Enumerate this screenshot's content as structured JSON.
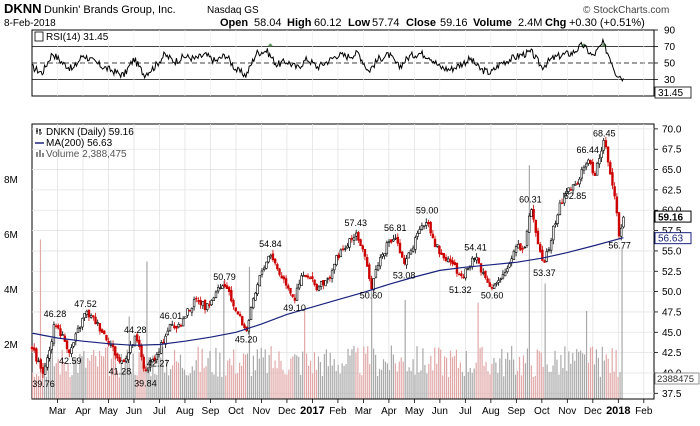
{
  "header": {
    "ticker": "DKNN",
    "company": "Dunkin' Brands Group, Inc.",
    "exchange": "Nasdaq GS",
    "date": "8-Feb-2018",
    "open_label": "Open",
    "open": "58.04",
    "high_label": "High",
    "high": "60.12",
    "low_label": "Low",
    "low": "57.74",
    "close_label": "Close",
    "close": "59.16",
    "volume_label": "Volume",
    "volume": "2.4M",
    "chg_label": "Chg",
    "chg": "+0.30 (+0.51%)",
    "attribution": "© StockCharts.com"
  },
  "rsi_panel": {
    "label": "RSI(14) 31.45",
    "current_tag": "31.45",
    "ticks": [
      30,
      50,
      70,
      90
    ],
    "ylim": [
      10,
      90
    ],
    "overbought": 70,
    "oversold": 30,
    "mid": 50,
    "line_color": "#000000",
    "highlight_color": "#3a7a3a"
  },
  "price_panel": {
    "legend": [
      {
        "label": "DNKN (Daily) 59.16"
      },
      {
        "label": "MA(200) 56.63"
      },
      {
        "label": "Volume 2,388,475"
      }
    ],
    "ticks": [
      37.5,
      40.0,
      42.5,
      45.0,
      47.5,
      50.0,
      52.5,
      55.0,
      57.5,
      60.0,
      62.5,
      65.0,
      67.5,
      70.0
    ],
    "tick_labels": [
      "37.5",
      "40.0",
      "42.5",
      "45.0",
      "47.5",
      "50.0",
      "52.5",
      "55.0",
      "57.5",
      "60.0",
      "62.5",
      "65.0",
      "67.5",
      "70.0"
    ],
    "ylim": [
      36.8,
      70.6
    ],
    "tags": {
      "close": "59.16",
      "ma": "56.63",
      "volume": "2388475"
    },
    "volume_ticks": [
      "2M",
      "4M",
      "6M",
      "8M"
    ],
    "volume_tick_values": [
      2,
      4,
      6,
      8
    ],
    "colors": {
      "up": "#000000",
      "down": "#cc0000",
      "ma": "#1a237e",
      "volume": "#bdbdbd",
      "volume_up": "#a9a9a9",
      "volume_down": "#e2a8a8"
    }
  },
  "chart_data": {
    "type": "candlestick",
    "title": "DKNN Dunkin' Brands Group, Inc. Nasdaq GS",
    "x_axis": {
      "tick_labels": [
        "Mar",
        "Apr",
        "May",
        "Jun",
        "Jul",
        "Aug",
        "Sep",
        "Oct",
        "Nov",
        "Dec",
        "2017",
        "Feb",
        "Mar",
        "Apr",
        "May",
        "Jun",
        "Jul",
        "Aug",
        "Sep",
        "Oct",
        "Nov",
        "Dec",
        "2018",
        "Feb"
      ],
      "tick_months": [
        1,
        2,
        3,
        4,
        5,
        6,
        7,
        8,
        9,
        10,
        11,
        12,
        13,
        14,
        15,
        16,
        17,
        18,
        19,
        20,
        21,
        22,
        23,
        24
      ],
      "range_months": [
        0.0,
        24.4
      ]
    },
    "price_series": [
      {
        "t": 0.0,
        "v": 43.0
      },
      {
        "t": 0.25,
        "v": 41.2
      },
      {
        "t": 0.45,
        "v": 39.76
      },
      {
        "t": 0.65,
        "v": 42.0
      },
      {
        "t": 0.9,
        "v": 46.28
      },
      {
        "t": 1.2,
        "v": 44.5
      },
      {
        "t": 1.5,
        "v": 42.59
      },
      {
        "t": 1.8,
        "v": 45.2
      },
      {
        "t": 2.1,
        "v": 47.52
      },
      {
        "t": 2.45,
        "v": 46.5
      },
      {
        "t": 2.8,
        "v": 45.0
      },
      {
        "t": 3.1,
        "v": 43.5
      },
      {
        "t": 3.45,
        "v": 41.28
      },
      {
        "t": 3.75,
        "v": 42.3
      },
      {
        "t": 4.05,
        "v": 44.28
      },
      {
        "t": 4.25,
        "v": 42.8
      },
      {
        "t": 4.45,
        "v": 39.84
      },
      {
        "t": 4.7,
        "v": 41.5
      },
      {
        "t": 4.95,
        "v": 42.27
      },
      {
        "t": 5.2,
        "v": 44.5
      },
      {
        "t": 5.45,
        "v": 46.01
      },
      {
        "t": 5.75,
        "v": 45.5
      },
      {
        "t": 6.1,
        "v": 47.6
      },
      {
        "t": 6.5,
        "v": 49.2
      },
      {
        "t": 6.85,
        "v": 48.0
      },
      {
        "t": 7.2,
        "v": 49.8
      },
      {
        "t": 7.55,
        "v": 50.79
      },
      {
        "t": 7.85,
        "v": 48.8
      },
      {
        "t": 8.15,
        "v": 46.8
      },
      {
        "t": 8.4,
        "v": 45.2
      },
      {
        "t": 8.7,
        "v": 49.0
      },
      {
        "t": 9.0,
        "v": 52.5
      },
      {
        "t": 9.35,
        "v": 54.84
      },
      {
        "t": 9.7,
        "v": 52.3
      },
      {
        "t": 10.0,
        "v": 51.0
      },
      {
        "t": 10.3,
        "v": 49.1
      },
      {
        "t": 10.6,
        "v": 52.0
      },
      {
        "t": 10.9,
        "v": 51.5
      },
      {
        "t": 11.2,
        "v": 50.5
      },
      {
        "t": 11.6,
        "v": 51.4
      },
      {
        "t": 12.0,
        "v": 54.5
      },
      {
        "t": 12.35,
        "v": 55.5
      },
      {
        "t": 12.7,
        "v": 57.43
      },
      {
        "t": 13.0,
        "v": 54.8
      },
      {
        "t": 13.3,
        "v": 50.6
      },
      {
        "t": 13.6,
        "v": 53.8
      },
      {
        "t": 13.9,
        "v": 55.5
      },
      {
        "t": 14.25,
        "v": 56.81
      },
      {
        "t": 14.6,
        "v": 53.08
      },
      {
        "t": 14.9,
        "v": 55.5
      },
      {
        "t": 15.2,
        "v": 57.2
      },
      {
        "t": 15.5,
        "v": 59.0
      },
      {
        "t": 15.8,
        "v": 56.0
      },
      {
        "t": 16.1,
        "v": 54.3
      },
      {
        "t": 16.5,
        "v": 53.6
      },
      {
        "t": 16.8,
        "v": 51.32
      },
      {
        "t": 17.1,
        "v": 52.8
      },
      {
        "t": 17.4,
        "v": 54.41
      },
      {
        "t": 17.7,
        "v": 52.2
      },
      {
        "t": 18.05,
        "v": 50.6
      },
      {
        "t": 18.4,
        "v": 51.4
      },
      {
        "t": 18.7,
        "v": 53.2
      },
      {
        "t": 19.0,
        "v": 56.0
      },
      {
        "t": 19.3,
        "v": 55.0
      },
      {
        "t": 19.55,
        "v": 60.31
      },
      {
        "t": 19.85,
        "v": 56.2
      },
      {
        "t": 20.1,
        "v": 53.37
      },
      {
        "t": 20.4,
        "v": 57.0
      },
      {
        "t": 20.7,
        "v": 60.5
      },
      {
        "t": 21.0,
        "v": 62.8
      },
      {
        "t": 21.3,
        "v": 62.85
      },
      {
        "t": 21.55,
        "v": 64.5
      },
      {
        "t": 21.8,
        "v": 66.44
      },
      {
        "t": 22.05,
        "v": 64.3
      },
      {
        "t": 22.25,
        "v": 66.5
      },
      {
        "t": 22.45,
        "v": 68.45
      },
      {
        "t": 22.65,
        "v": 65.5
      },
      {
        "t": 22.85,
        "v": 61.5
      },
      {
        "t": 23.05,
        "v": 56.77
      },
      {
        "t": 23.2,
        "v": 59.16
      }
    ],
    "ma200_series": [
      {
        "t": 0.0,
        "v": 44.9
      },
      {
        "t": 1.0,
        "v": 44.3
      },
      {
        "t": 2.0,
        "v": 43.9
      },
      {
        "t": 3.0,
        "v": 43.6
      },
      {
        "t": 4.0,
        "v": 43.4
      },
      {
        "t": 5.0,
        "v": 43.5
      },
      {
        "t": 6.0,
        "v": 43.9
      },
      {
        "t": 7.0,
        "v": 44.4
      },
      {
        "t": 8.0,
        "v": 45.0
      },
      {
        "t": 9.0,
        "v": 46.0
      },
      {
        "t": 10.0,
        "v": 47.2
      },
      {
        "t": 11.0,
        "v": 48.1
      },
      {
        "t": 12.0,
        "v": 49.0
      },
      {
        "t": 13.0,
        "v": 49.9
      },
      {
        "t": 14.0,
        "v": 50.9
      },
      {
        "t": 15.0,
        "v": 51.8
      },
      {
        "t": 16.0,
        "v": 52.6
      },
      {
        "t": 17.0,
        "v": 53.0
      },
      {
        "t": 18.0,
        "v": 53.3
      },
      {
        "t": 19.0,
        "v": 53.6
      },
      {
        "t": 20.0,
        "v": 54.1
      },
      {
        "t": 21.0,
        "v": 54.8
      },
      {
        "t": 22.0,
        "v": 55.6
      },
      {
        "t": 23.2,
        "v": 56.63
      }
    ],
    "annotations": [
      {
        "t": 0.45,
        "v": 39.76,
        "label": "39.76",
        "pos": "below"
      },
      {
        "t": 0.9,
        "v": 46.28,
        "label": "46.28",
        "pos": "above"
      },
      {
        "t": 1.5,
        "v": 42.59,
        "label": "42.59",
        "pos": "below"
      },
      {
        "t": 2.1,
        "v": 47.52,
        "label": "47.52",
        "pos": "above"
      },
      {
        "t": 3.45,
        "v": 41.28,
        "label": "41.28",
        "pos": "below"
      },
      {
        "t": 4.05,
        "v": 44.28,
        "label": "44.28",
        "pos": "above"
      },
      {
        "t": 4.45,
        "v": 39.84,
        "label": "39.84",
        "pos": "below"
      },
      {
        "t": 4.95,
        "v": 42.27,
        "label": "42.27",
        "pos": "below"
      },
      {
        "t": 5.45,
        "v": 46.01,
        "label": "46.01",
        "pos": "above"
      },
      {
        "t": 7.55,
        "v": 50.79,
        "label": "50.79",
        "pos": "above"
      },
      {
        "t": 8.4,
        "v": 45.2,
        "label": "45.20",
        "pos": "below"
      },
      {
        "t": 9.35,
        "v": 54.84,
        "label": "54.84",
        "pos": "above"
      },
      {
        "t": 10.3,
        "v": 49.1,
        "label": "49.10",
        "pos": "below"
      },
      {
        "t": 12.7,
        "v": 57.43,
        "label": "57.43",
        "pos": "above"
      },
      {
        "t": 13.3,
        "v": 50.6,
        "label": "50.60",
        "pos": "below"
      },
      {
        "t": 14.25,
        "v": 56.81,
        "label": "56.81",
        "pos": "above"
      },
      {
        "t": 14.6,
        "v": 53.08,
        "label": "53.08",
        "pos": "below"
      },
      {
        "t": 15.5,
        "v": 59.0,
        "label": "59.00",
        "pos": "above"
      },
      {
        "t": 16.8,
        "v": 51.32,
        "label": "51.32",
        "pos": "below"
      },
      {
        "t": 17.4,
        "v": 54.41,
        "label": "54.41",
        "pos": "above"
      },
      {
        "t": 18.05,
        "v": 50.6,
        "label": "50.60",
        "pos": "below"
      },
      {
        "t": 19.55,
        "v": 60.31,
        "label": "60.31",
        "pos": "above"
      },
      {
        "t": 20.1,
        "v": 53.37,
        "label": "53.37",
        "pos": "below"
      },
      {
        "t": 21.3,
        "v": 62.85,
        "label": "62.85",
        "pos": "below"
      },
      {
        "t": 21.8,
        "v": 66.44,
        "label": "66.44",
        "pos": "above"
      },
      {
        "t": 22.45,
        "v": 68.45,
        "label": "68.45",
        "pos": "above"
      },
      {
        "t": 23.05,
        "v": 56.77,
        "label": "56.77",
        "pos": "below"
      }
    ],
    "rsi_series": [
      {
        "t": 0.0,
        "v": 45
      },
      {
        "t": 0.4,
        "v": 38
      },
      {
        "t": 0.8,
        "v": 62
      },
      {
        "t": 1.2,
        "v": 50
      },
      {
        "t": 1.6,
        "v": 42
      },
      {
        "t": 2.0,
        "v": 60
      },
      {
        "t": 2.4,
        "v": 52
      },
      {
        "t": 2.8,
        "v": 45
      },
      {
        "t": 3.2,
        "v": 40
      },
      {
        "t": 3.6,
        "v": 35
      },
      {
        "t": 4.0,
        "v": 55
      },
      {
        "t": 4.4,
        "v": 36
      },
      {
        "t": 4.8,
        "v": 45
      },
      {
        "t": 5.2,
        "v": 60
      },
      {
        "t": 5.6,
        "v": 52
      },
      {
        "t": 6.0,
        "v": 58
      },
      {
        "t": 6.4,
        "v": 55
      },
      {
        "t": 6.8,
        "v": 60
      },
      {
        "t": 7.2,
        "v": 52
      },
      {
        "t": 7.6,
        "v": 60
      },
      {
        "t": 8.0,
        "v": 42
      },
      {
        "t": 8.4,
        "v": 35
      },
      {
        "t": 8.8,
        "v": 62
      },
      {
        "t": 9.2,
        "v": 65
      },
      {
        "t": 9.6,
        "v": 48
      },
      {
        "t": 10.0,
        "v": 52
      },
      {
        "t": 10.4,
        "v": 44
      },
      {
        "t": 10.8,
        "v": 55
      },
      {
        "t": 11.2,
        "v": 45
      },
      {
        "t": 11.6,
        "v": 52
      },
      {
        "t": 12.0,
        "v": 60
      },
      {
        "t": 12.4,
        "v": 58
      },
      {
        "t": 12.8,
        "v": 62
      },
      {
        "t": 13.2,
        "v": 40
      },
      {
        "t": 13.6,
        "v": 55
      },
      {
        "t": 14.0,
        "v": 60
      },
      {
        "t": 14.4,
        "v": 45
      },
      {
        "t": 14.8,
        "v": 58
      },
      {
        "t": 15.2,
        "v": 62
      },
      {
        "t": 15.6,
        "v": 58
      },
      {
        "t": 16.0,
        "v": 45
      },
      {
        "t": 16.4,
        "v": 42
      },
      {
        "t": 16.8,
        "v": 48
      },
      {
        "t": 17.2,
        "v": 55
      },
      {
        "t": 17.6,
        "v": 42
      },
      {
        "t": 18.0,
        "v": 38
      },
      {
        "t": 18.4,
        "v": 50
      },
      {
        "t": 18.8,
        "v": 55
      },
      {
        "t": 19.2,
        "v": 60
      },
      {
        "t": 19.6,
        "v": 63
      },
      {
        "t": 20.0,
        "v": 45
      },
      {
        "t": 20.4,
        "v": 55
      },
      {
        "t": 20.8,
        "v": 60
      },
      {
        "t": 21.2,
        "v": 62
      },
      {
        "t": 21.6,
        "v": 72
      },
      {
        "t": 22.0,
        "v": 58
      },
      {
        "t": 22.4,
        "v": 74
      },
      {
        "t": 22.7,
        "v": 55
      },
      {
        "t": 22.9,
        "v": 38
      },
      {
        "t": 23.2,
        "v": 31.45
      }
    ],
    "volume_spikes_millions": [
      {
        "t": 0.3,
        "v": 5.8
      },
      {
        "t": 3.8,
        "v": 3.0
      },
      {
        "t": 4.5,
        "v": 5.0
      },
      {
        "t": 7.5,
        "v": 4.3
      },
      {
        "t": 8.5,
        "v": 4.8
      },
      {
        "t": 10.7,
        "v": 3.2
      },
      {
        "t": 13.3,
        "v": 4.5
      },
      {
        "t": 14.6,
        "v": 3.6
      },
      {
        "t": 17.5,
        "v": 3.5
      },
      {
        "t": 19.5,
        "v": 8.5
      },
      {
        "t": 20.1,
        "v": 4.2
      },
      {
        "t": 21.7,
        "v": 3.2
      },
      {
        "t": 23.1,
        "v": 5.5
      }
    ],
    "volume_base_millions": 1.3,
    "volume_ylim": [
      0,
      10
    ]
  }
}
